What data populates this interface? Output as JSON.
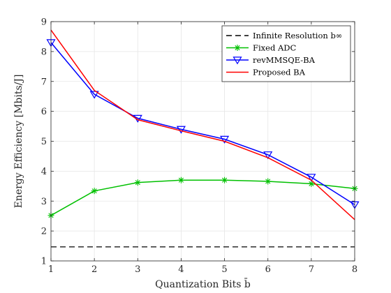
{
  "chart_data": {
    "type": "line",
    "xlabel": "Quantization Bits b̄",
    "ylabel": "Energy Efficiency [Mbits/J]",
    "xlim": [
      1,
      8
    ],
    "ylim": [
      1,
      9
    ],
    "x_ticks": [
      1,
      2,
      3,
      4,
      5,
      6,
      7,
      8
    ],
    "y_ticks": [
      1,
      2,
      3,
      4,
      5,
      6,
      7,
      8,
      9
    ],
    "grid": true,
    "legend_position": "top-right",
    "x": [
      1,
      2,
      3,
      4,
      5,
      6,
      7,
      8
    ],
    "series": [
      {
        "name": "Infinite Resolution b∞",
        "color": "#000000",
        "style": "dashed",
        "marker": "none",
        "values": [
          1.47,
          1.47,
          1.47,
          1.47,
          1.47,
          1.47,
          1.47,
          1.47
        ]
      },
      {
        "name": "Fixed ADC",
        "color": "#00c000",
        "style": "solid",
        "marker": "asterisk",
        "values": [
          2.52,
          3.34,
          3.62,
          3.7,
          3.7,
          3.66,
          3.58,
          3.42
        ]
      },
      {
        "name": "revMMSQE-BA",
        "color": "#0000ff",
        "style": "solid",
        "marker": "triangle-down",
        "values": [
          8.3,
          6.57,
          5.77,
          5.4,
          5.07,
          4.55,
          3.8,
          2.88
        ]
      },
      {
        "name": "Proposed BA",
        "color": "#ff0000",
        "style": "solid",
        "marker": "none",
        "values": [
          8.72,
          6.7,
          5.72,
          5.35,
          5.0,
          4.45,
          3.7,
          2.38
        ]
      }
    ]
  }
}
